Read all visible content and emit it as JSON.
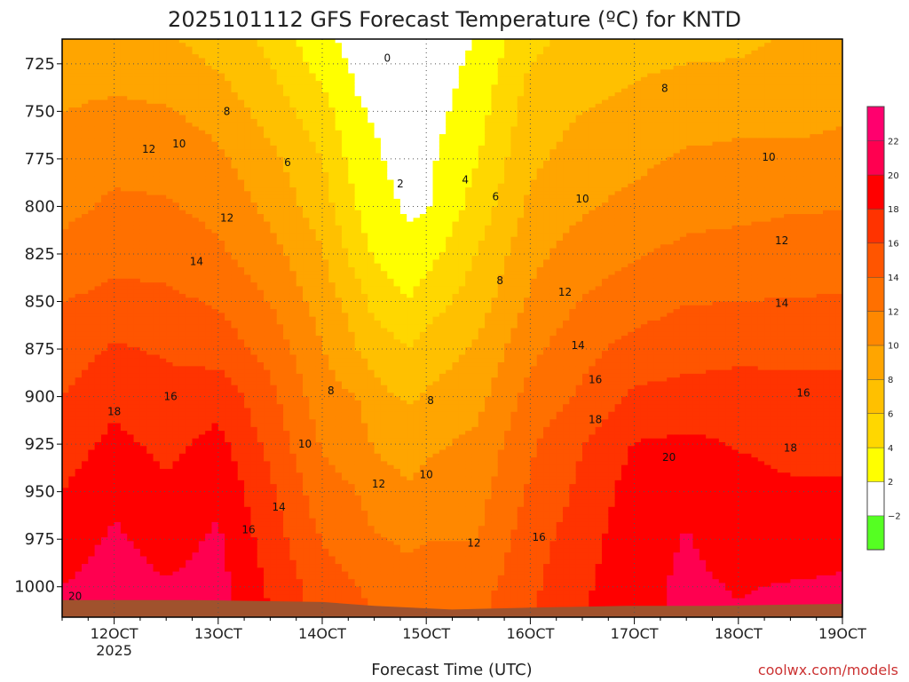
{
  "chart_data": {
    "type": "heatmap",
    "title": "2025101112 GFS Forecast Temperature (ºC) for KNTD",
    "xlabel": "Forecast Time (UTC)",
    "ylabel": "",
    "credit": "coolwx.com/models",
    "x_start_time": "2025-10-11 12UTC",
    "x_end_time": "2025-10-19 00UTC",
    "x_ticks": [
      {
        "label": "12OCT",
        "sub": "2025",
        "hour": 12
      },
      {
        "label": "13OCT",
        "sub": "",
        "hour": 36
      },
      {
        "label": "14OCT",
        "sub": "",
        "hour": 60
      },
      {
        "label": "15OCT",
        "sub": "",
        "hour": 84
      },
      {
        "label": "16OCT",
        "sub": "",
        "hour": 108
      },
      {
        "label": "17OCT",
        "sub": "",
        "hour": 132
      },
      {
        "label": "18OCT",
        "sub": "",
        "hour": 156
      },
      {
        "label": "19OCT",
        "sub": "",
        "hour": 180
      }
    ],
    "y_ticks": [
      725,
      750,
      775,
      800,
      825,
      850,
      875,
      900,
      925,
      950,
      975,
      1000
    ],
    "ylim_hpa": [
      1016,
      712
    ],
    "grid": true,
    "colorbar": {
      "levels": [
        -2,
        2,
        4,
        6,
        8,
        10,
        12,
        14,
        16,
        18,
        20,
        22
      ],
      "level_labels": [
        "−2",
        "2",
        "4",
        "6",
        "8",
        "10",
        "12",
        "14",
        "16",
        "18",
        "20",
        "22"
      ],
      "colors": [
        "#55ff22",
        "#ffffff",
        "#ffff00",
        "#ffd700",
        "#ffc000",
        "#ffa500",
        "#ff8800",
        "#ff7000",
        "#ff5500",
        "#ff3300",
        "#ff0000",
        "#ff0050",
        "#ff006e"
      ]
    },
    "temperature_profiles_c": {
      "pressure_levels_hpa": [
        712,
        725,
        750,
        775,
        800,
        825,
        850,
        875,
        900,
        925,
        950,
        975,
        1000,
        1016
      ],
      "columns": [
        {
          "hour": 0,
          "temps": [
            8.5,
            9,
            10,
            11,
            11.5,
            12.5,
            14,
            15,
            16,
            17,
            18,
            19,
            20,
            20.5
          ]
        },
        {
          "hour": 12,
          "temps": [
            8.7,
            9.2,
            10.4,
            11.5,
            12.3,
            13.4,
            14.6,
            16.2,
            17.5,
            18.5,
            19.6,
            20.3,
            20.9,
            21.3
          ]
        },
        {
          "hour": 24,
          "temps": [
            8.2,
            8.8,
            10.2,
            11.3,
            12.2,
            13.3,
            14.4,
            15.8,
            16.5,
            17.5,
            18.3,
            19.2,
            20.2,
            20.6
          ]
        },
        {
          "hour": 36,
          "temps": [
            7.3,
            7.8,
            9.2,
            10.4,
            11.4,
            12.4,
            13.8,
            15.1,
            17.3,
            18.6,
            19.6,
            20.3,
            20.7,
            21
          ]
        },
        {
          "hour": 48,
          "temps": [
            5.5,
            6,
            7.2,
            8.5,
            9.5,
            10.7,
            11.9,
            13.3,
            14.5,
            15.4,
            16.4,
            17,
            17.7,
            18
          ]
        },
        {
          "hour": 60,
          "temps": [
            2.5,
            3.2,
            4.8,
            6,
            6.9,
            8.2,
            9.1,
            10.1,
            10.9,
            11.8,
            12.8,
            13.9,
            14.9,
            15.3
          ]
        },
        {
          "hour": 68,
          "temps": [
            1.2,
            1.6,
            2.2,
            3,
            4,
            5,
            7,
            8,
            10,
            11,
            12,
            13,
            14,
            14.5
          ]
        },
        {
          "hour": 72,
          "temps": [
            0.8,
            1.2,
            1.8,
            2.3,
            2.8,
            3.8,
            5.3,
            7.2,
            8.6,
            9.8,
            11,
            12.2,
            13.5,
            14
          ]
        },
        {
          "hour": 80,
          "temps": [
            -0.5,
            0.2,
            0.8,
            1.2,
            1.7,
            2.6,
            4.1,
            6,
            7.7,
            9.1,
            10.3,
            11.6,
            12.8,
            13.2
          ]
        },
        {
          "hour": 84,
          "temps": [
            0.2,
            0.6,
            1.1,
            1.5,
            1.8,
            3.2,
            5,
            6.9,
            8.2,
            9.6,
            10.7,
            11.9,
            13.1,
            13.5
          ]
        },
        {
          "hour": 96,
          "temps": [
            2.1,
            2.6,
            3.2,
            4,
            4.9,
            6.1,
            7.1,
            8.3,
            9.4,
            10.5,
            11.3,
            12,
            13.2,
            13.6
          ]
        },
        {
          "hour": 108,
          "temps": [
            5.5,
            6,
            7,
            7.6,
            8.4,
            9.4,
            10.3,
            11.5,
            12.7,
            13.7,
            14.3,
            15.1,
            15.6,
            15.9
          ]
        },
        {
          "hour": 120,
          "temps": [
            6.7,
            7.2,
            8,
            8.8,
            9.7,
            11,
            12.1,
            13.4,
            14.3,
            15.9,
            16.5,
            17.1,
            17.6,
            17.9
          ]
        },
        {
          "hour": 132,
          "temps": [
            7.3,
            7.7,
            8.5,
            9.5,
            10.6,
            11.8,
            13.1,
            14.7,
            16.4,
            18.1,
            18.9,
            19.3,
            19.5,
            19.5
          ]
        },
        {
          "hour": 144,
          "temps": [
            7.6,
            8,
            9,
            10.3,
            11.3,
            12.5,
            13.9,
            15.2,
            16.7,
            18.4,
            19.6,
            20.1,
            20.3,
            20.3
          ]
        },
        {
          "hour": 156,
          "temps": [
            7.6,
            8.1,
            9.3,
            10.5,
            11.5,
            12.7,
            14,
            15.5,
            16.8,
            17.9,
            18.7,
            19.3,
            19.9,
            20.1
          ]
        },
        {
          "hour": 168,
          "temps": [
            8.2,
            8.5,
            9.4,
            10.4,
            11.8,
            12.9,
            14.1,
            15.4,
            16.8,
            17.4,
            18.3,
            19.2,
            20.1,
            20.5
          ]
        },
        {
          "hour": 180,
          "temps": [
            8.4,
            8.7,
            9.7,
            10.6,
            11.9,
            13,
            14.2,
            15.5,
            16.6,
            17.4,
            18.3,
            19.3,
            20.3,
            20.6
          ]
        }
      ]
    },
    "contour_labels": [
      {
        "text": "0",
        "hour": 75,
        "p": 722
      },
      {
        "text": "2",
        "hour": 78,
        "p": 788
      },
      {
        "text": "4",
        "hour": 93,
        "p": 786
      },
      {
        "text": "6",
        "hour": 52,
        "p": 777
      },
      {
        "text": "6",
        "hour": 100,
        "p": 795
      },
      {
        "text": "8",
        "hour": 38,
        "p": 750
      },
      {
        "text": "8",
        "hour": 139,
        "p": 738
      },
      {
        "text": "8",
        "hour": 101,
        "p": 839
      },
      {
        "text": "8",
        "hour": 62,
        "p": 897
      },
      {
        "text": "8",
        "hour": 85,
        "p": 902
      },
      {
        "text": "10",
        "hour": 27,
        "p": 767
      },
      {
        "text": "10",
        "hour": 120,
        "p": 796
      },
      {
        "text": "10",
        "hour": 163,
        "p": 774
      },
      {
        "text": "10",
        "hour": 56,
        "p": 925
      },
      {
        "text": "10",
        "hour": 84,
        "p": 941
      },
      {
        "text": "12",
        "hour": 20,
        "p": 770
      },
      {
        "text": "12",
        "hour": 38,
        "p": 806
      },
      {
        "text": "12",
        "hour": 166,
        "p": 818
      },
      {
        "text": "12",
        "hour": 116,
        "p": 845
      },
      {
        "text": "12",
        "hour": 73,
        "p": 946
      },
      {
        "text": "12",
        "hour": 95,
        "p": 977
      },
      {
        "text": "14",
        "hour": 31,
        "p": 829
      },
      {
        "text": "14",
        "hour": 119,
        "p": 873
      },
      {
        "text": "14",
        "hour": 166,
        "p": 851
      },
      {
        "text": "14",
        "hour": 50,
        "p": 958
      },
      {
        "text": "16",
        "hour": 123,
        "p": 891
      },
      {
        "text": "16",
        "hour": 171,
        "p": 898
      },
      {
        "text": "16",
        "hour": 25,
        "p": 900
      },
      {
        "text": "16",
        "hour": 43,
        "p": 970
      },
      {
        "text": "16",
        "hour": 110,
        "p": 974
      },
      {
        "text": "18",
        "hour": 12,
        "p": 908
      },
      {
        "text": "18",
        "hour": 123,
        "p": 912
      },
      {
        "text": "18",
        "hour": 168,
        "p": 927
      },
      {
        "text": "20",
        "hour": 140,
        "p": 932
      },
      {
        "text": "20",
        "hour": 3,
        "p": 1005
      }
    ]
  }
}
